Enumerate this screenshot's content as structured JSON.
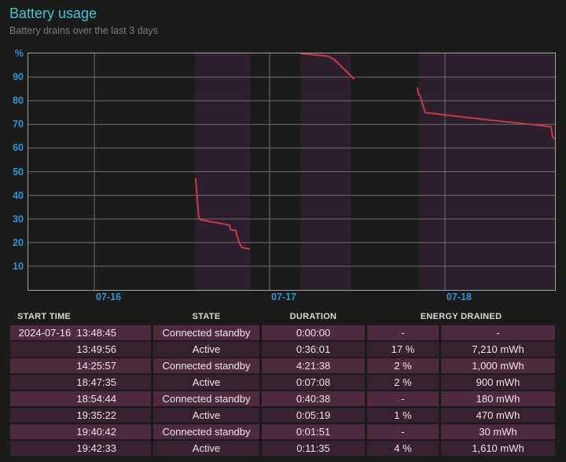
{
  "page": {
    "title": "Battery usage",
    "subtitle": "Battery drains over the last 3 days"
  },
  "colors": {
    "background": "#1b1b1b",
    "title": "#40c7ce",
    "axis_label": "#3093d1",
    "gridline": "#6f6f6f",
    "plot_border": "#a3a3a3",
    "plot_background": "#1c1b1c",
    "usage_region": "#2d1f2e",
    "line": "#c43b46",
    "row_light": "#4e2a3e",
    "row_dark": "#38212e"
  },
  "chart_data": {
    "type": "line",
    "title": "Battery usage",
    "ylabel": "%",
    "ylim": [
      0,
      100
    ],
    "y_ticks": [
      10,
      20,
      30,
      40,
      50,
      60,
      70,
      80,
      90
    ],
    "y_top_label": "%",
    "x_domain_days": [
      -0.377,
      2.628
    ],
    "x_ticks": [
      {
        "t": 0,
        "label": "07-16"
      },
      {
        "t": 1,
        "label": "07-17"
      },
      {
        "t": 2,
        "label": "07-18"
      }
    ],
    "grid": true,
    "usage_regions": [
      [
        0.574,
        0.888
      ],
      [
        1.179,
        1.462
      ],
      [
        1.852,
        2.627
      ]
    ],
    "series": [
      {
        "name": "battery-percent",
        "unit": "%",
        "segments": [
          [
            [
              0.578,
              47
            ],
            [
              0.596,
              30.4
            ],
            [
              0.61,
              29.6
            ],
            [
              0.771,
              27.4
            ],
            [
              0.776,
              25.4
            ],
            [
              0.807,
              25.2
            ],
            [
              0.812,
              23.3
            ],
            [
              0.83,
              19.4
            ],
            [
              0.843,
              17.9
            ],
            [
              0.883,
              17.3
            ]
          ],
          [
            [
              1.179,
              100
            ],
            [
              1.336,
              98.8
            ],
            [
              1.368,
              97.4
            ],
            [
              1.466,
              90.4
            ],
            [
              1.48,
              89.3
            ]
          ],
          [
            [
              1.843,
              85.3
            ],
            [
              1.85,
              82.5
            ],
            [
              1.857,
              82.3
            ],
            [
              1.865,
              80.4
            ],
            [
              1.888,
              75.0
            ],
            [
              2.152,
              72.7
            ],
            [
              2.511,
              69.8
            ],
            [
              2.605,
              69.0
            ],
            [
              2.614,
              64.8
            ],
            [
              2.627,
              63.8
            ]
          ]
        ]
      }
    ]
  },
  "table": {
    "headers": {
      "start_time": "START TIME",
      "state": "STATE",
      "duration": "DURATION",
      "energy_drained": "ENERGY DRAINED"
    },
    "rows": [
      {
        "start_time": "2024-07-16  13:48:45",
        "state": "Connected standby",
        "duration": "0:00:00",
        "percent": "-",
        "energy": "-"
      },
      {
        "start_time": "13:49:56",
        "state": "Active",
        "duration": "0:36:01",
        "percent": "17 %",
        "energy": "7,210 mWh"
      },
      {
        "start_time": "14:25:57",
        "state": "Connected standby",
        "duration": "4:21:38",
        "percent": "2 %",
        "energy": "1,000 mWh"
      },
      {
        "start_time": "18:47:35",
        "state": "Active",
        "duration": "0:07:08",
        "percent": "2 %",
        "energy": "900 mWh"
      },
      {
        "start_time": "18:54:44",
        "state": "Connected standby",
        "duration": "0:40:38",
        "percent": "-",
        "energy": "180 mWh"
      },
      {
        "start_time": "19:35:22",
        "state": "Active",
        "duration": "0:05:19",
        "percent": "1 %",
        "energy": "470 mWh"
      },
      {
        "start_time": "19:40:42",
        "state": "Connected standby",
        "duration": "0:01:51",
        "percent": "-",
        "energy": "30 mWh"
      },
      {
        "start_time": "19:42:33",
        "state": "Active",
        "duration": "0:11:35",
        "percent": "4 %",
        "energy": "1,610 mWh"
      }
    ]
  }
}
